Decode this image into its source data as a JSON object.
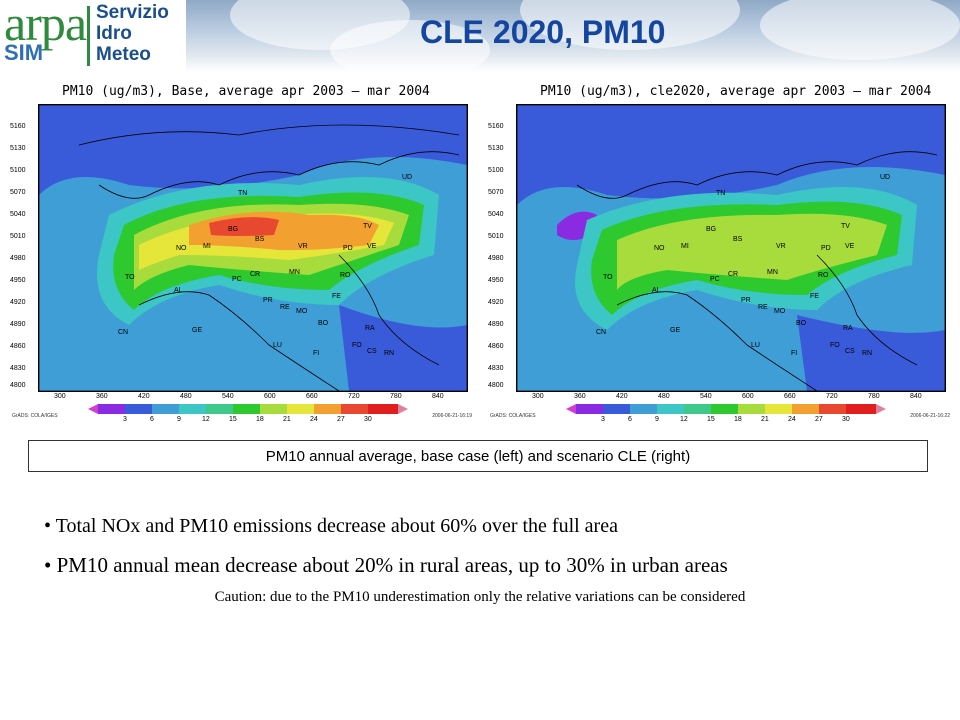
{
  "header": {
    "logo": {
      "arpa": "arpa",
      "sm": "SIM",
      "lines": [
        "Servizio",
        "Idro",
        "Meteo"
      ]
    },
    "title": "CLE 2020, PM10"
  },
  "maps": {
    "left": {
      "title": "PM10 (ug/m3), Base, average apr 2003 – mar 2004",
      "grads_label": "GrADS: COLA/IGES",
      "timestamp": "2006-06-21-16:19"
    },
    "right": {
      "title": "PM10 (ug/m3), cle2020, average apr 2003 – mar 2004",
      "grads_label": "GrADS: COLA/IGES",
      "timestamp": "2006-06-21-16:22"
    },
    "y_ticks": [
      "5160",
      "5130",
      "5100",
      "5070",
      "5040",
      "5010",
      "4980",
      "4950",
      "4920",
      "4890",
      "4860",
      "4830",
      "4800"
    ],
    "x_ticks": [
      "300",
      "360",
      "420",
      "480",
      "540",
      "600",
      "660",
      "720",
      "780",
      "840"
    ],
    "legend_values": [
      "3",
      "6",
      "9",
      "12",
      "15",
      "18",
      "21",
      "24",
      "27",
      "30"
    ],
    "legend_colors": [
      "#8a2be2",
      "#3a5bd9",
      "#3f9ed6",
      "#3cc6c6",
      "#3ec98a",
      "#2ec92e",
      "#a8dc3c",
      "#e6e63a",
      "#f2a030",
      "#e84830",
      "#e01e1e"
    ],
    "cities": [
      "TN",
      "UD",
      "BG",
      "BS",
      "TV",
      "VE",
      "NO",
      "MI",
      "VR",
      "PD",
      "TO",
      "PC",
      "CR",
      "MN",
      "RO",
      "AL",
      "PR",
      "FE",
      "RE",
      "MO",
      "GE",
      "BO",
      "RA",
      "CN",
      "FO",
      "CS",
      "RN",
      "LU",
      "FI"
    ]
  },
  "caption": "PM10 annual average, base case (left) and scenario CLE (right)",
  "bullets": [
    "Total NOx and PM10 emissions decrease about 60% over the full area",
    "PM10 annual mean decrease about 20% in rural areas, up to 30% in urban areas"
  ],
  "note": "Caution: due to the PM10 underestimation only the relative variations  can be considered"
}
